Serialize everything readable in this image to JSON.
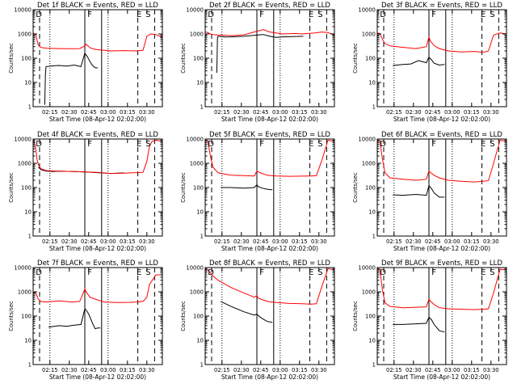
{
  "colors": {
    "events": "#000000",
    "lld": "#ff0000",
    "background": "#ffffff",
    "axes": "#000000"
  },
  "chart_data": {
    "type": "line",
    "grid": false,
    "shared": {
      "ylabel": "Counts/sec",
      "xlabel": "Start Time (08-Apr-12 02:02:00)",
      "yscale": "log",
      "ylim": [
        1,
        10000
      ],
      "y_tick_labels": [
        "1",
        "10",
        "100",
        "1000",
        "10000"
      ],
      "x_range_min": [
        0,
        100
      ],
      "x_tick_labels": [
        "02:15",
        "02:30",
        "02:45",
        "03:00",
        "03:15",
        "03:30"
      ],
      "x_ticks_min": [
        13,
        28,
        43,
        58,
        73,
        88
      ],
      "dashed_lines_min": [
        5,
        81,
        94
      ],
      "dotted_lines_min": [
        13,
        58
      ],
      "solid_lines_min": [
        40,
        53
      ],
      "region_letters": [
        "D",
        "F",
        "E",
        "S"
      ],
      "region_letters_min": [
        2,
        42,
        80,
        87
      ]
    },
    "panels": [
      {
        "title": "Det 1f BLACK = Events, RED = LLD",
        "series": [
          {
            "name": "Events",
            "color": "#000000",
            "x": [
              9,
              9.5,
              10,
              14,
              20,
              26,
              32,
              37,
              40,
              42,
              44,
              46,
              48,
              50
            ],
            "y": [
              1.2,
              20,
              45,
              48,
              50,
              47,
              52,
              45,
              160,
              115,
              72,
              50,
              40,
              40
            ]
          },
          {
            "name": "LLD",
            "color": "#ff0000",
            "x": [
              0,
              2,
              4,
              6,
              10,
              20,
              30,
              36,
              40,
              41,
              44,
              48,
              52,
              60,
              70,
              80,
              85,
              88,
              91,
              95,
              100
            ],
            "y": [
              1100,
              950,
              350,
              280,
              260,
              250,
              245,
              250,
              320,
              380,
              270,
              230,
              220,
              200,
              205,
              200,
              210,
              800,
              1000,
              950,
              700
            ]
          }
        ]
      },
      {
        "title": "Det 2f BLACK = Events, RED = LLD",
        "series": [
          {
            "name": "Events",
            "color": "#000000",
            "x": [
              9,
              9.5,
              10,
              15,
              20,
              30,
              40,
              45,
              50,
              55,
              60,
              70,
              76
            ],
            "y": [
              25,
              700,
              800,
              750,
              760,
              800,
              900,
              950,
              800,
              720,
              760,
              790,
              800
            ]
          },
          {
            "name": "LLD",
            "color": "#ff0000",
            "x": [
              0,
              2,
              4,
              6,
              10,
              20,
              30,
              40,
              45,
              50,
              60,
              70,
              75,
              80,
              85,
              90,
              95,
              100
            ],
            "y": [
              1200,
              1150,
              1000,
              950,
              900,
              850,
              920,
              1300,
              1500,
              1200,
              1000,
              1050,
              1000,
              1050,
              1100,
              1200,
              1150,
              900
            ]
          }
        ]
      },
      {
        "title": "Det 3f BLACK = Events, RED = LLD",
        "series": [
          {
            "name": "Events",
            "color": "#000000",
            "x": [
              12,
              20,
              26,
              32,
              38,
              40,
              42,
              44,
              48,
              52
            ],
            "y": [
              50,
              55,
              58,
              80,
              65,
              110,
              85,
              62,
              52,
              55
            ]
          },
          {
            "name": "LLD",
            "color": "#ff0000",
            "x": [
              0,
              2,
              4,
              6,
              10,
              20,
              30,
              38,
              40,
              41,
              44,
              48,
              55,
              65,
              75,
              82,
              86,
              90,
              95,
              100
            ],
            "y": [
              1100,
              1050,
              600,
              400,
              320,
              280,
              250,
              300,
              750,
              520,
              330,
              250,
              200,
              180,
              190,
              175,
              200,
              900,
              1100,
              1000
            ]
          }
        ]
      },
      {
        "title": "Det 4f BLACK = Events, RED = LLD",
        "series": [
          {
            "name": "Events",
            "color": "#000000",
            "x": [
              4,
              6,
              10,
              15,
              20,
              30,
              40,
              50,
              60,
              70
            ],
            "y": [
              700,
              550,
              480,
              460,
              470,
              460,
              440,
              410,
              380,
              400
            ]
          },
          {
            "name": "LLD",
            "color": "#ff0000",
            "x": [
              0,
              1,
              2,
              3,
              4,
              6,
              10,
              20,
              30,
              40,
              50,
              60,
              70,
              75,
              80,
              85,
              88,
              90,
              92,
              95,
              100
            ],
            "y": [
              9000,
              7000,
              4000,
              1500,
              900,
              600,
              500,
              470,
              460,
              440,
              420,
              380,
              390,
              400,
              410,
              420,
              1200,
              5000,
              8000,
              9000,
              8000
            ]
          }
        ]
      },
      {
        "title": "Det 5f BLACK = Events, RED = LLD",
        "series": [
          {
            "name": "Events",
            "color": "#000000",
            "x": [
              12,
              20,
              30,
              38,
              40,
              41,
              44,
              48,
              52
            ],
            "y": [
              100,
              100,
              95,
              100,
              130,
              110,
              95,
              85,
              80
            ]
          },
          {
            "name": "LLD",
            "color": "#ff0000",
            "x": [
              0,
              2,
              4,
              6,
              10,
              20,
              30,
              38,
              40,
              41,
              44,
              48,
              55,
              65,
              75,
              82,
              86,
              90,
              95,
              100
            ],
            "y": [
              9000,
              8500,
              2000,
              700,
              400,
              320,
              310,
              300,
              480,
              450,
              380,
              320,
              300,
              290,
              295,
              300,
              310,
              1200,
              9000,
              8000
            ]
          }
        ]
      },
      {
        "title": "Det 6f BLACK = Events, RED = LLD",
        "series": [
          {
            "name": "Events",
            "color": "#000000",
            "x": [
              12,
              20,
              30,
              38,
              40,
              42,
              44,
              48,
              52
            ],
            "y": [
              50,
              48,
              52,
              48,
              120,
              90,
              60,
              40,
              40
            ]
          },
          {
            "name": "LLD",
            "color": "#ff0000",
            "x": [
              0,
              2,
              4,
              6,
              10,
              20,
              30,
              38,
              40,
              41,
              44,
              48,
              55,
              65,
              75,
              82,
              86,
              90,
              95,
              100
            ],
            "y": [
              9000,
              8500,
              1500,
              400,
              250,
              220,
              200,
              220,
              480,
              420,
              320,
              250,
              200,
              180,
              170,
              180,
              190,
              1000,
              9000,
              8000
            ]
          }
        ]
      },
      {
        "title": "Det 7f BLACK = Events, RED = LLD",
        "series": [
          {
            "name": "Events",
            "color": "#000000",
            "x": [
              12,
              20,
              26,
              32,
              37,
              40,
              41,
              43,
              46,
              48,
              50,
              52
            ],
            "y": [
              35,
              40,
              38,
              42,
              45,
              200,
              180,
              120,
              50,
              30,
              32,
              32
            ]
          },
          {
            "name": "LLD",
            "color": "#ff0000",
            "x": [
              0,
              2,
              4,
              6,
              10,
              20,
              30,
              36,
              38,
              40,
              41,
              44,
              48,
              55,
              65,
              75,
              80,
              85,
              88,
              90,
              95,
              100
            ],
            "y": [
              1000,
              900,
              500,
              400,
              380,
              420,
              380,
              400,
              700,
              1300,
              1000,
              600,
              500,
              380,
              360,
              370,
              380,
              400,
              600,
              2000,
              5000,
              5000
            ]
          }
        ]
      },
      {
        "title": "Det 8f BLACK = Events, RED = LLD",
        "series": [
          {
            "name": "Events",
            "color": "#000000",
            "x": [
              12,
              20,
              30,
              38,
              40,
              42,
              44,
              48,
              52
            ],
            "y": [
              400,
              250,
              150,
              110,
              120,
              95,
              80,
              60,
              55
            ]
          },
          {
            "name": "LLD",
            "color": "#ff0000",
            "x": [
              0,
              2,
              4,
              6,
              10,
              20,
              30,
              38,
              40,
              41,
              44,
              48,
              55,
              65,
              75,
              82,
              86,
              90,
              95,
              100
            ],
            "y": [
              9000,
              8000,
              6000,
              4500,
              3000,
              1500,
              900,
              600,
              700,
              550,
              480,
              400,
              360,
              330,
              320,
              310,
              320,
              1500,
              9000,
              8000
            ]
          }
        ]
      },
      {
        "title": "Det 9f BLACK = Events, RED = LLD",
        "series": [
          {
            "name": "Events",
            "color": "#000000",
            "x": [
              12,
              20,
              30,
              38,
              40,
              42,
              44,
              48,
              52
            ],
            "y": [
              45,
              45,
              48,
              50,
              90,
              70,
              45,
              25,
              22
            ]
          },
          {
            "name": "LLD",
            "color": "#ff0000",
            "x": [
              0,
              2,
              4,
              6,
              10,
              20,
              30,
              38,
              40,
              41,
              44,
              48,
              55,
              65,
              75,
              82,
              86,
              90,
              95,
              100
            ],
            "y": [
              9000,
              8500,
              1200,
              350,
              250,
              220,
              230,
              240,
              500,
              420,
              300,
              220,
              200,
              190,
              185,
              190,
              200,
              900,
              8500,
              8000
            ]
          }
        ]
      }
    ]
  }
}
